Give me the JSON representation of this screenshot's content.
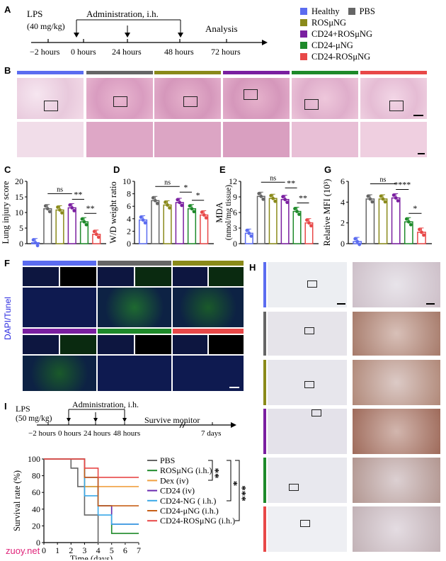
{
  "panel_labels": {
    "A": "A",
    "B": "B",
    "C": "C",
    "D": "D",
    "E": "E",
    "F": "F",
    "G": "G",
    "H": "H",
    "I": "I"
  },
  "colors": {
    "healthy": "#5b6cf0",
    "pbs": "#666666",
    "rosung": "#8a8a1a",
    "cd24rosung": "#7a1fa0",
    "cd24ung": "#1e8a2a",
    "cd24rosung2": "#e84848",
    "dex": "#f0a040",
    "cd24": "#6a2ab0",
    "cd24ng": "#3aa8e8",
    "cd24ung_surv": "#c86018"
  },
  "timeline_A": {
    "lps": "LPS",
    "dose": "(40 mg/kg)",
    "admin": "Administration, i.h.",
    "analysis": "Analysis",
    "ticks": [
      "−2 hours",
      "0 hours",
      "24 hours",
      "48 hours",
      "72 hours"
    ]
  },
  "legend_A": [
    {
      "label": "Healthy",
      "color": "#5b6cf0"
    },
    {
      "label": "PBS",
      "color": "#666666"
    },
    {
      "label": "ROSμNG",
      "color": "#8a8a1a"
    },
    {
      "label": "CD24+ROSμNG",
      "color": "#7a1fa0"
    },
    {
      "label": "CD24-μNG",
      "color": "#1e8a2a"
    },
    {
      "label": "CD24-ROSμNG",
      "color": "#e84848"
    }
  ],
  "f_ylabel": "DAPI/Tunel",
  "timeline_I": {
    "lps": "LPS",
    "dose": "(50 mg/kg)",
    "admin": "Administration, i.h.",
    "monitor": "Survive monitor",
    "ticks": [
      "−2 hours",
      "0 hours",
      "24 hours",
      "48 hours",
      "7 days"
    ]
  },
  "chart_data": [
    {
      "type": "bar",
      "panel": "C",
      "ylabel": "Lung injury score",
      "ylim": [
        0,
        20
      ],
      "yticks": [
        0,
        5,
        10,
        15,
        20
      ],
      "categories": [
        "Healthy",
        "PBS",
        "ROSμNG",
        "CD24+ROSμNG",
        "CD24-μNG",
        "CD24-ROSμNG"
      ],
      "values": [
        0.3,
        11.2,
        10.8,
        11.5,
        7.0,
        3.0
      ],
      "sig": [
        {
          "label": "ns"
        },
        {
          "label": "**"
        },
        {
          "label": "**"
        }
      ]
    },
    {
      "type": "bar",
      "panel": "D",
      "ylabel": "W/D weight ratio",
      "ylim": [
        0,
        10
      ],
      "yticks": [
        0,
        2,
        4,
        6,
        8,
        10
      ],
      "categories": [
        "Healthy",
        "PBS",
        "ROSμNG",
        "CD24+ROSμNG",
        "CD24-μNG",
        "CD24-ROSμNG"
      ],
      "values": [
        3.8,
        6.9,
        6.2,
        6.6,
        5.6,
        4.6
      ],
      "sig": [
        {
          "label": "ns"
        },
        {
          "label": "*"
        },
        {
          "label": "*"
        }
      ]
    },
    {
      "type": "bar",
      "panel": "E",
      "ylabel": "MDA",
      "ylabel2": "(nmol/mg tissue)",
      "ylim": [
        0,
        12
      ],
      "yticks": [
        0,
        3,
        6,
        9,
        12
      ],
      "categories": [
        "Healthy",
        "PBS",
        "ROSμNG",
        "CD24+ROSμNG",
        "CD24-μNG",
        "CD24-ROSμNG"
      ],
      "values": [
        2.0,
        9.1,
        8.7,
        8.5,
        6.2,
        4.0
      ],
      "sig": [
        {
          "label": "ns"
        },
        {
          "label": "**"
        },
        {
          "label": "**"
        }
      ]
    },
    {
      "type": "bar",
      "panel": "G",
      "ylabel": "Relative MFI (10³)",
      "ylim": [
        0,
        6
      ],
      "yticks": [
        0,
        2,
        4,
        6
      ],
      "categories": [
        "Healthy",
        "PBS",
        "ROSμNG",
        "CD24+ROSμNG",
        "CD24-μNG",
        "CD24-ROSμNG"
      ],
      "values": [
        0.2,
        4.3,
        4.3,
        4.4,
        2.1,
        1.1
      ],
      "sig": [
        {
          "label": "ns"
        },
        {
          "label": "****"
        },
        {
          "label": "*"
        }
      ]
    },
    {
      "type": "line",
      "panel": "I",
      "xlabel": "Time (days)",
      "ylabel": "Survival rate (%)",
      "xlim": [
        0,
        7
      ],
      "ylim": [
        0,
        100
      ],
      "xticks": [
        0,
        1,
        2,
        3,
        4,
        5,
        6,
        7
      ],
      "yticks": [
        0,
        20,
        40,
        60,
        80,
        100
      ],
      "series": [
        {
          "name": "PBS",
          "color": "#666666",
          "points": [
            [
              0,
              100
            ],
            [
              2,
              100
            ],
            [
              2,
              89
            ],
            [
              2.5,
              89
            ],
            [
              2.5,
              67
            ],
            [
              3,
              67
            ],
            [
              3,
              33
            ],
            [
              4,
              33
            ],
            [
              4,
              0
            ],
            [
              7,
              0
            ]
          ]
        },
        {
          "name": "ROSμNG (i.h.)",
          "color": "#1e8a2a",
          "points": [
            [
              0,
              100
            ],
            [
              3,
              100
            ],
            [
              3,
              67
            ],
            [
              4,
              67
            ],
            [
              4,
              44
            ],
            [
              5,
              44
            ],
            [
              5,
              11
            ],
            [
              7,
              11
            ]
          ]
        },
        {
          "name": "Dex (iv)",
          "color": "#f0a040",
          "points": [
            [
              0,
              100
            ],
            [
              3,
              100
            ],
            [
              3,
              67
            ],
            [
              7,
              67
            ]
          ]
        },
        {
          "name": "CD24 (iv)",
          "color": "#6a2ab0",
          "points": [
            [
              0,
              100
            ],
            [
              3,
              100
            ],
            [
              3,
              78
            ],
            [
              4,
              78
            ],
            [
              4,
              44
            ],
            [
              5,
              44
            ],
            [
              5,
              22
            ],
            [
              7,
              22
            ]
          ]
        },
        {
          "name": "CD24-NG ( i.h.)",
          "color": "#3aa8e8",
          "points": [
            [
              0,
              100
            ],
            [
              3,
              100
            ],
            [
              3,
              56
            ],
            [
              4,
              56
            ],
            [
              4,
              33
            ],
            [
              5,
              33
            ],
            [
              5,
              22
            ],
            [
              7,
              22
            ]
          ]
        },
        {
          "name": "CD24-μNG (i.h.)",
          "color": "#c86018",
          "points": [
            [
              0,
              100
            ],
            [
              3,
              100
            ],
            [
              3,
              78
            ],
            [
              4,
              78
            ],
            [
              4,
              44
            ],
            [
              7,
              44
            ]
          ]
        },
        {
          "name": "CD24-ROSμNG (i.h.)",
          "color": "#e84848",
          "points": [
            [
              0,
              100
            ],
            [
              3,
              100
            ],
            [
              3,
              89
            ],
            [
              4,
              89
            ],
            [
              4,
              78
            ],
            [
              7,
              78
            ]
          ]
        }
      ],
      "sig": [
        {
          "label": "**"
        },
        {
          "label": "*"
        },
        {
          "label": "***"
        }
      ]
    }
  ],
  "watermark": "zuoy.net"
}
